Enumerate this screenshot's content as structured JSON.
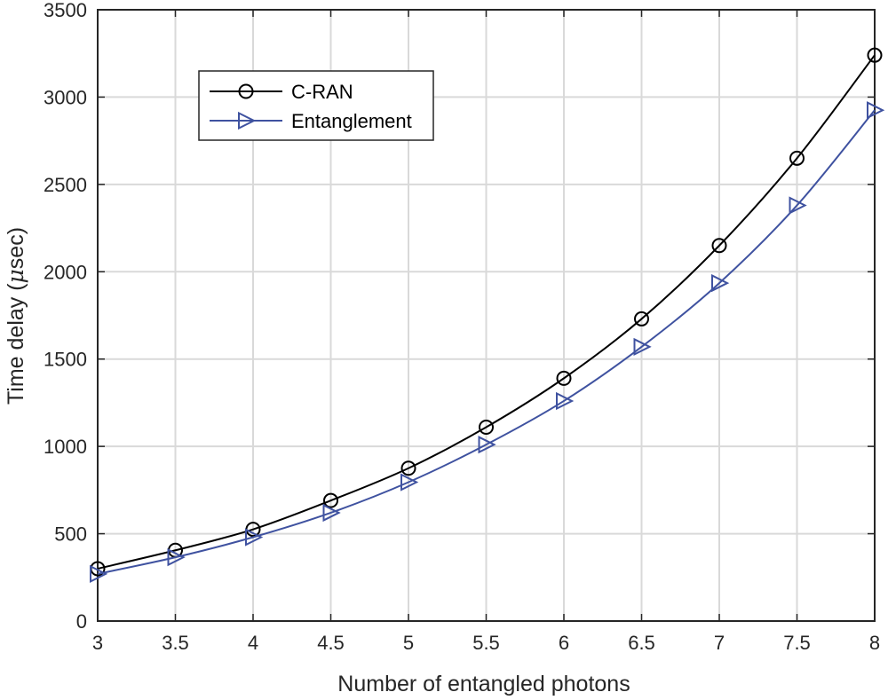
{
  "chart_data": {
    "type": "line",
    "xlabel": "Number of entangled photons",
    "ylabel_text": "Time delay (",
    "ylabel_mu": "μ",
    "ylabel_unit": "sec)",
    "xlim": [
      3,
      8
    ],
    "ylim": [
      0,
      3500
    ],
    "xticks": [
      3,
      3.5,
      4,
      4.5,
      5,
      5.5,
      6,
      6.5,
      7,
      7.5,
      8
    ],
    "yticks": [
      0,
      500,
      1000,
      1500,
      2000,
      2500,
      3000,
      3500
    ],
    "grid": true,
    "legend_position": "top-left",
    "x": [
      3,
      3.5,
      4,
      4.5,
      5,
      5.5,
      6,
      6.5,
      7,
      7.5,
      8
    ],
    "series": [
      {
        "name": "C-RAN",
        "color": "#000000",
        "marker": "circle",
        "values": [
          300,
          405,
          525,
          690,
          875,
          1110,
          1390,
          1730,
          2150,
          2650,
          3240
        ]
      },
      {
        "name": "Entanglement",
        "color": "#3f52a0",
        "marker": "triangle-right",
        "values": [
          270,
          365,
          480,
          620,
          795,
          1010,
          1260,
          1570,
          1935,
          2380,
          2925
        ]
      }
    ]
  }
}
